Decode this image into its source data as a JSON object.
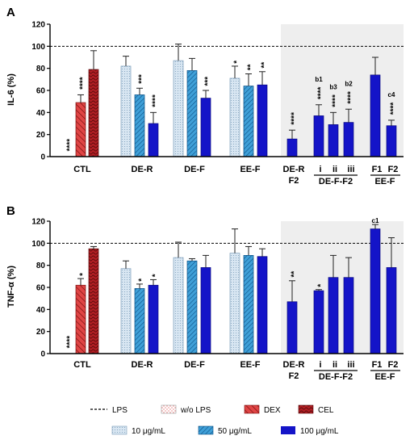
{
  "legend": {
    "lps": "LPS",
    "wo_lps": "w/o LPS",
    "dex": "DEX",
    "cel": "CEL",
    "c10": "10 μg/mL",
    "c50": "50 μg/mL",
    "c100": "100 μg/mL"
  },
  "colors": {
    "dex": "#e04545",
    "cel": "#b21f24",
    "c10": "#cfe0ef",
    "c50": "#3fa0d8",
    "c100": "#1414c8",
    "shade": "#eeeeee"
  },
  "chart_data": [
    {
      "type": "bar",
      "panel_label": "A",
      "ylabel": "IL-6 (%)",
      "ylim": [
        0,
        120
      ],
      "yticks": [
        0,
        20,
        40,
        60,
        80,
        100,
        120
      ],
      "reference_line": 100,
      "groups": [
        "CTL",
        "DE-R",
        "DE-F",
        "EE-F",
        "DE-R F2",
        "DE-F-F2",
        "EE-F"
      ],
      "bars": [
        {
          "label": "w/o LPS",
          "style": "wo",
          "value": 0,
          "error": 0,
          "sig": "****",
          "ann": ""
        },
        {
          "label": "DEX",
          "style": "dex",
          "value": 49,
          "error": 7,
          "sig": "****",
          "ann": ""
        },
        {
          "label": "CEL",
          "style": "cel",
          "value": 79,
          "error": 17,
          "sig": "",
          "ann": ""
        },
        {
          "label": "DE-R 10",
          "style": "c10",
          "value": 82,
          "error": 9,
          "sig": "",
          "ann": ""
        },
        {
          "label": "DE-R 50",
          "style": "c50",
          "value": 56,
          "error": 6,
          "sig": "***",
          "ann": ""
        },
        {
          "label": "DE-R 100",
          "style": "c100",
          "value": 30,
          "error": 10,
          "sig": "****",
          "ann": ""
        },
        {
          "label": "DE-F 10",
          "style": "c10",
          "value": 87,
          "error": 15,
          "sig": "",
          "ann": ""
        },
        {
          "label": "DE-F 50",
          "style": "c50",
          "value": 78,
          "error": 11,
          "sig": "",
          "ann": ""
        },
        {
          "label": "DE-F 100",
          "style": "c100",
          "value": 53,
          "error": 7,
          "sig": "***",
          "ann": ""
        },
        {
          "label": "EE-F 10",
          "style": "c10",
          "value": 71,
          "error": 11,
          "sig": "*",
          "ann": ""
        },
        {
          "label": "EE-F 50",
          "style": "c50",
          "value": 64,
          "error": 11,
          "sig": "**",
          "ann": ""
        },
        {
          "label": "EE-F 100",
          "style": "c100",
          "value": 65,
          "error": 12,
          "sig": "**",
          "ann": ""
        },
        {
          "label": "DE-R F2",
          "style": "c100",
          "value": 16,
          "error": 8,
          "sig": "****",
          "ann": ""
        },
        {
          "label": "DE-F-F2 i",
          "style": "c100",
          "value": 37,
          "error": 10,
          "sig": "****",
          "ann": "b1"
        },
        {
          "label": "DE-F-F2 ii",
          "style": "c100",
          "value": 29,
          "error": 11,
          "sig": "****",
          "ann": "b3"
        },
        {
          "label": "DE-F-F2 iii",
          "style": "c100",
          "value": 31,
          "error": 12,
          "sig": "****",
          "ann": "b2"
        },
        {
          "label": "EE-F F1",
          "style": "c100",
          "value": 74,
          "error": 16,
          "sig": "",
          "ann": ""
        },
        {
          "label": "EE-F F2",
          "style": "c100",
          "value": 28,
          "error": 5,
          "sig": "****",
          "ann": "c4"
        }
      ]
    },
    {
      "type": "bar",
      "panel_label": "B",
      "ylabel": "TNF-α (%)",
      "ylim": [
        0,
        120
      ],
      "yticks": [
        0,
        20,
        40,
        60,
        80,
        100,
        120
      ],
      "reference_line": 100,
      "groups": [
        "CTL",
        "DE-R",
        "DE-F",
        "EE-F",
        "DE-R F2",
        "DE-F-F2",
        "EE-F"
      ],
      "bars": [
        {
          "label": "w/o LPS",
          "style": "wo",
          "value": 0,
          "error": 0,
          "sig": "****",
          "ann": ""
        },
        {
          "label": "DEX",
          "style": "dex",
          "value": 62,
          "error": 6,
          "sig": "*",
          "ann": ""
        },
        {
          "label": "CEL",
          "style": "cel",
          "value": 95,
          "error": 2,
          "sig": "",
          "ann": ""
        },
        {
          "label": "DE-R 10",
          "style": "c10",
          "value": 77,
          "error": 7,
          "sig": "",
          "ann": ""
        },
        {
          "label": "DE-R 50",
          "style": "c50",
          "value": 59,
          "error": 4,
          "sig": "*",
          "ann": ""
        },
        {
          "label": "DE-R 100",
          "style": "c100",
          "value": 62,
          "error": 5,
          "sig": "*",
          "ann": ""
        },
        {
          "label": "DE-F 10",
          "style": "c10",
          "value": 87,
          "error": 14,
          "sig": "",
          "ann": ""
        },
        {
          "label": "DE-F 50",
          "style": "c50",
          "value": 84,
          "error": 2,
          "sig": "",
          "ann": ""
        },
        {
          "label": "DE-F 100",
          "style": "c100",
          "value": 78,
          "error": 11,
          "sig": "",
          "ann": ""
        },
        {
          "label": "EE-F 10",
          "style": "c10",
          "value": 91,
          "error": 22,
          "sig": "",
          "ann": ""
        },
        {
          "label": "EE-F 50",
          "style": "c50",
          "value": 89,
          "error": 8,
          "sig": "",
          "ann": ""
        },
        {
          "label": "EE-F 100",
          "style": "c100",
          "value": 88,
          "error": 7,
          "sig": "",
          "ann": ""
        },
        {
          "label": "DE-R F2",
          "style": "c100",
          "value": 47,
          "error": 19,
          "sig": "**",
          "ann": ""
        },
        {
          "label": "DE-F-F2 i",
          "style": "c100",
          "value": 57,
          "error": 1,
          "sig": "*",
          "ann": ""
        },
        {
          "label": "DE-F-F2 ii",
          "style": "c100",
          "value": 69,
          "error": 20,
          "sig": "",
          "ann": ""
        },
        {
          "label": "DE-F-F2 iii",
          "style": "c100",
          "value": 69,
          "error": 18,
          "sig": "",
          "ann": ""
        },
        {
          "label": "EE-F F1",
          "style": "c100",
          "value": 113,
          "error": 4,
          "sig": "",
          "ann": "c1"
        },
        {
          "label": "EE-F F2",
          "style": "c100",
          "value": 78,
          "error": 27,
          "sig": "",
          "ann": ""
        }
      ]
    }
  ],
  "axis_labels": {
    "ctl": "CTL",
    "der": "DE-R",
    "def": "DE-F",
    "eef": "EE-F",
    "der_f2_top": "DE-R",
    "der_f2_bottom": "F2",
    "def_f2": "DE-F-F2",
    "eef_sub": "EE-F",
    "i": "i",
    "ii": "ii",
    "iii": "iii",
    "f1": "F1",
    "f2": "F2"
  }
}
